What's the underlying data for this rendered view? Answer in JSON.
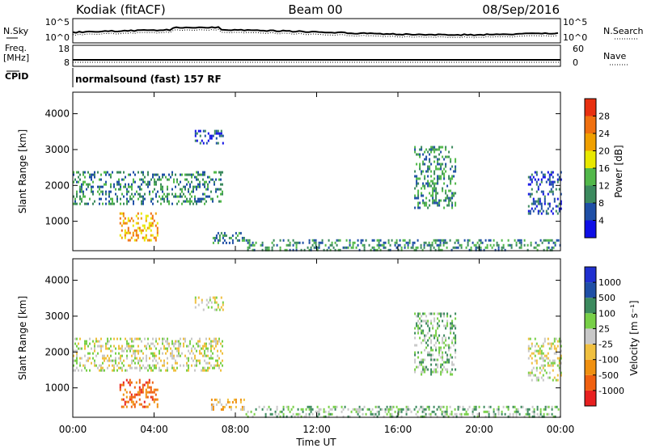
{
  "header": {
    "station": "Kodiak (fitACF)",
    "beam": "Beam 00",
    "date": "08/Sep/2016"
  },
  "top_panels": {
    "nsky_label": "N.Sky",
    "nsky_ticks": [
      "10^5",
      "10^0"
    ],
    "nsearch_label": "N.Search",
    "nsearch_ticks": [
      "10^5",
      "10^0"
    ],
    "freq_label": "Freq.",
    "freq_unit": "[MHz]",
    "freq_ticks": [
      "18",
      "8"
    ],
    "nave_label": "Nave",
    "nave_ticks": [
      "60",
      "0"
    ],
    "cpid_label": "CPID",
    "cpid_text": "normalsound (fast) 157 RF"
  },
  "colors": {
    "power": [
      "#0f0fe6",
      "#1f4fa6",
      "#3c8a5e",
      "#52b84a",
      "#e8e800",
      "#f0a000",
      "#f07010",
      "#e83010"
    ],
    "velocity": [
      "#e82020",
      "#f06010",
      "#f09010",
      "#f0c040",
      "#c8c8c8",
      "#78d048",
      "#3c8a5e",
      "#1f4fa6",
      "#2030d0"
    ]
  },
  "chart_data": [
    {
      "type": "heatmap",
      "name": "power",
      "xlabel": "",
      "ylabel": "Slant Range [km]",
      "yticks": [
        "1000",
        "2000",
        "3000",
        "4000"
      ],
      "ylim": [
        180,
        4600
      ],
      "xlim": [
        0,
        24
      ],
      "colorbar_label": "Power [dB]",
      "colorbar_ticks": [
        "4",
        "8",
        "12",
        "16",
        "20",
        "24",
        "28"
      ],
      "colorbar_range": [
        0,
        32
      ],
      "echo_regions": [
        {
          "t": [
            0.0,
            7.4
          ],
          "range": [
            1500,
            2400
          ],
          "level": 10
        },
        {
          "t": [
            2.3,
            4.2
          ],
          "range": [
            500,
            1250
          ],
          "level": 20
        },
        {
          "t": [
            6.8,
            8.4
          ],
          "range": [
            400,
            700
          ],
          "level": 9
        },
        {
          "t": [
            8.5,
            24.0
          ],
          "range": [
            180,
            500
          ],
          "level": 9
        },
        {
          "t": [
            16.8,
            18.8
          ],
          "range": [
            1400,
            3100
          ],
          "level": 8
        },
        {
          "t": [
            22.4,
            24.0
          ],
          "range": [
            1200,
            2400
          ],
          "level": 6
        },
        {
          "t": [
            6.0,
            7.4
          ],
          "range": [
            3200,
            3550
          ],
          "level": 6
        }
      ]
    },
    {
      "type": "heatmap",
      "name": "velocity",
      "xlabel": "Time UT",
      "ylabel": "Slant Range [km]",
      "xticks": [
        "00:00",
        "04:00",
        "08:00",
        "12:00",
        "16:00",
        "20:00",
        "00:00"
      ],
      "yticks": [
        "1000",
        "2000",
        "3000",
        "4000"
      ],
      "ylim": [
        180,
        4600
      ],
      "xlim": [
        0,
        24
      ],
      "colorbar_label": "Velocity [m s⁻¹]",
      "colorbar_ticks": [
        "-1000",
        "-500",
        "-100",
        "-25",
        "25",
        "100",
        "500",
        "1000"
      ],
      "echo_regions": [
        {
          "t": [
            0.0,
            7.4
          ],
          "range": [
            1500,
            2400
          ],
          "bin": 4
        },
        {
          "t": [
            2.3,
            4.2
          ],
          "range": [
            500,
            1250
          ],
          "bin": 1
        },
        {
          "t": [
            6.8,
            8.4
          ],
          "range": [
            400,
            700
          ],
          "bin": 3
        },
        {
          "t": [
            8.5,
            24.0
          ],
          "range": [
            180,
            500
          ],
          "bin": 5
        },
        {
          "t": [
            16.8,
            18.8
          ],
          "range": [
            1400,
            3100
          ],
          "bin": 5
        },
        {
          "t": [
            22.4,
            24.0
          ],
          "range": [
            1200,
            2400
          ],
          "bin": 4
        },
        {
          "t": [
            6.0,
            7.4
          ],
          "range": [
            3200,
            3550
          ],
          "bin": 4
        }
      ]
    }
  ]
}
